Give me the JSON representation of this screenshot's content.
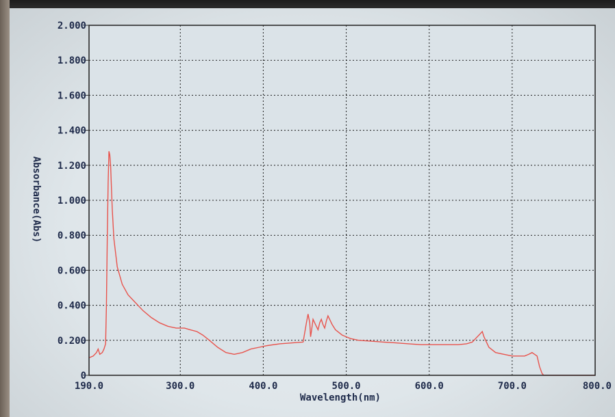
{
  "chart_data": {
    "type": "line",
    "title": "",
    "xlabel": "Wavelength(nm)",
    "ylabel": "Absorbance(Abs)",
    "xlim": [
      190.0,
      800.0
    ],
    "ylim": [
      0,
      2.0
    ],
    "grid": true,
    "x_tick_labels": [
      "190.0",
      "300.0",
      "400.0",
      "500.0",
      "600.0",
      "700.0",
      "800.0"
    ],
    "x_ticks": [
      190,
      300,
      400,
      500,
      600,
      700,
      800
    ],
    "y_tick_labels": [
      "0",
      "0.200",
      "0.400",
      "0.600",
      "0.800",
      "1.000",
      "1.200",
      "1.400",
      "1.600",
      "1.800",
      "2.000"
    ],
    "y_ticks": [
      0,
      0.2,
      0.4,
      0.6,
      0.8,
      1.0,
      1.2,
      1.4,
      1.6,
      1.8,
      2.0
    ],
    "series": [
      {
        "color": "#e8534c",
        "x": [
          190,
          195,
          199,
          201,
          203,
          206,
          208,
          210,
          211,
          212,
          213,
          214,
          215,
          216,
          218,
          220,
          224,
          230,
          237,
          245,
          255,
          265,
          275,
          285,
          295,
          305,
          312,
          320,
          327,
          335,
          345,
          355,
          365,
          375,
          385,
          395,
          405,
          420,
          435,
          448,
          452,
          454,
          456,
          457,
          458,
          460,
          463,
          466,
          468,
          470,
          472,
          474,
          476,
          478,
          480,
          483,
          487,
          495,
          505,
          515,
          530,
          545,
          560,
          575,
          590,
          605,
          620,
          635,
          645,
          652,
          656,
          660,
          662,
          664,
          666,
          668,
          672,
          680,
          690,
          700,
          710,
          715,
          720,
          724,
          727,
          730,
          733,
          736,
          738,
          745,
          760,
          780,
          800
        ],
        "y": [
          0.1,
          0.11,
          0.13,
          0.15,
          0.12,
          0.13,
          0.15,
          0.18,
          0.4,
          0.8,
          1.1,
          1.28,
          1.26,
          1.2,
          0.95,
          0.78,
          0.62,
          0.52,
          0.46,
          0.42,
          0.37,
          0.33,
          0.3,
          0.28,
          0.27,
          0.27,
          0.26,
          0.25,
          0.23,
          0.2,
          0.16,
          0.13,
          0.12,
          0.13,
          0.15,
          0.16,
          0.17,
          0.18,
          0.185,
          0.19,
          0.3,
          0.35,
          0.3,
          0.22,
          0.25,
          0.32,
          0.29,
          0.26,
          0.3,
          0.32,
          0.29,
          0.27,
          0.31,
          0.34,
          0.32,
          0.29,
          0.26,
          0.23,
          0.21,
          0.2,
          0.195,
          0.19,
          0.185,
          0.18,
          0.175,
          0.175,
          0.175,
          0.175,
          0.18,
          0.19,
          0.21,
          0.23,
          0.24,
          0.25,
          0.22,
          0.2,
          0.16,
          0.13,
          0.12,
          0.11,
          0.11,
          0.11,
          0.12,
          0.13,
          0.12,
          0.11,
          0.05,
          0.01,
          0.0,
          0.0,
          0.0,
          0.0,
          0.0
        ]
      }
    ]
  },
  "colors": {
    "line": "#e8534c",
    "axis_text": "#1e2a4a",
    "grid": "#1a1a1a",
    "frame": "#2a2a2a"
  }
}
